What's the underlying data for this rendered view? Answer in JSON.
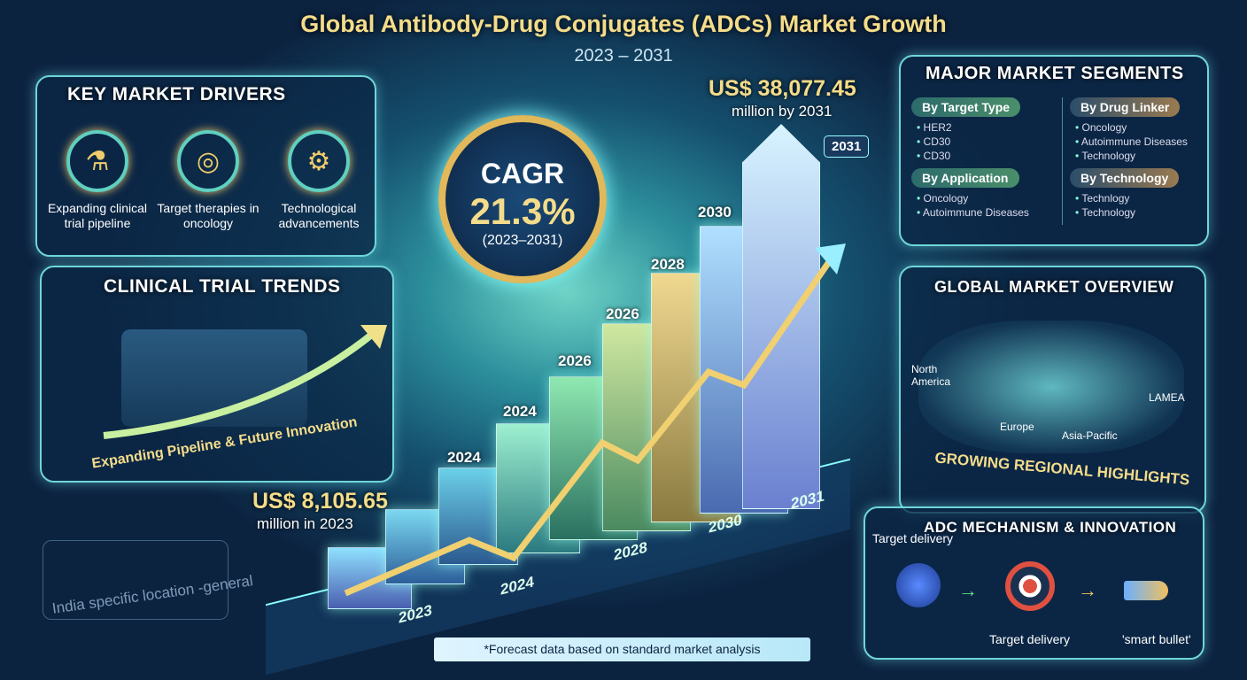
{
  "header": {
    "title": "Global Antibody-Drug Conjugates (ADCs) Market Growth",
    "subtitle": "2023 – 2031"
  },
  "drivers": {
    "title": "Key Market Drivers",
    "items": [
      {
        "icon": "flask-icon",
        "label": "Expanding clinical trial pipeline"
      },
      {
        "icon": "target-icon",
        "label": "Target therapies in oncology"
      },
      {
        "icon": "gear-icon",
        "label": "Technological advancements"
      }
    ]
  },
  "clinical": {
    "title": "Clinical Trial Trends",
    "caption": "Expanding Pipeline & Future Innovation"
  },
  "india": {
    "caption": "India specific location -general"
  },
  "cagr": {
    "label": "CAGR",
    "value": "21.3%",
    "period": "(2023–2031)"
  },
  "end_value": {
    "amount": "US$ 38,077.45",
    "unit": "million by 2031",
    "tag": "2031"
  },
  "start_value": {
    "amount": "US$ 8,105.65",
    "unit": "million in 2023"
  },
  "bars": {
    "top_labels": [
      "2024",
      "2024",
      "2026",
      "2026",
      "2028",
      "2030"
    ],
    "base_labels": [
      "2023",
      "2024",
      "2028",
      "2030",
      "2031"
    ]
  },
  "segments": {
    "title": "Major Market Segments",
    "groups": [
      {
        "name": "By Target Type",
        "items": [
          "HER2",
          "CD30",
          "CD30"
        ]
      },
      {
        "name": "By Application",
        "items": [
          "Oncology",
          "Autoimmune Diseases"
        ]
      },
      {
        "name": "By Drug Linker",
        "items": [
          "Oncology",
          "Autoimmune Diseases",
          "Technology"
        ]
      },
      {
        "name": "By Technology",
        "items": [
          "Technlogy",
          "Technology"
        ]
      }
    ]
  },
  "overview": {
    "title": "Global Market Overview",
    "regions": [
      "North America",
      "Europe",
      "Asia-Pacific",
      "LAMEA"
    ],
    "caption": "Growing Regional Highlights"
  },
  "mechanism": {
    "title": "ADC Mechanism & Innovation",
    "label_top": "Target delivery",
    "label_bottom": "Target delivery",
    "label_bullet": "'smart bullet'"
  },
  "footnote": "*Forecast data based on standard market analysis",
  "colors": {
    "title": "#f4dc8a",
    "accent": "#6fd6d8",
    "background": "#0c2340"
  }
}
